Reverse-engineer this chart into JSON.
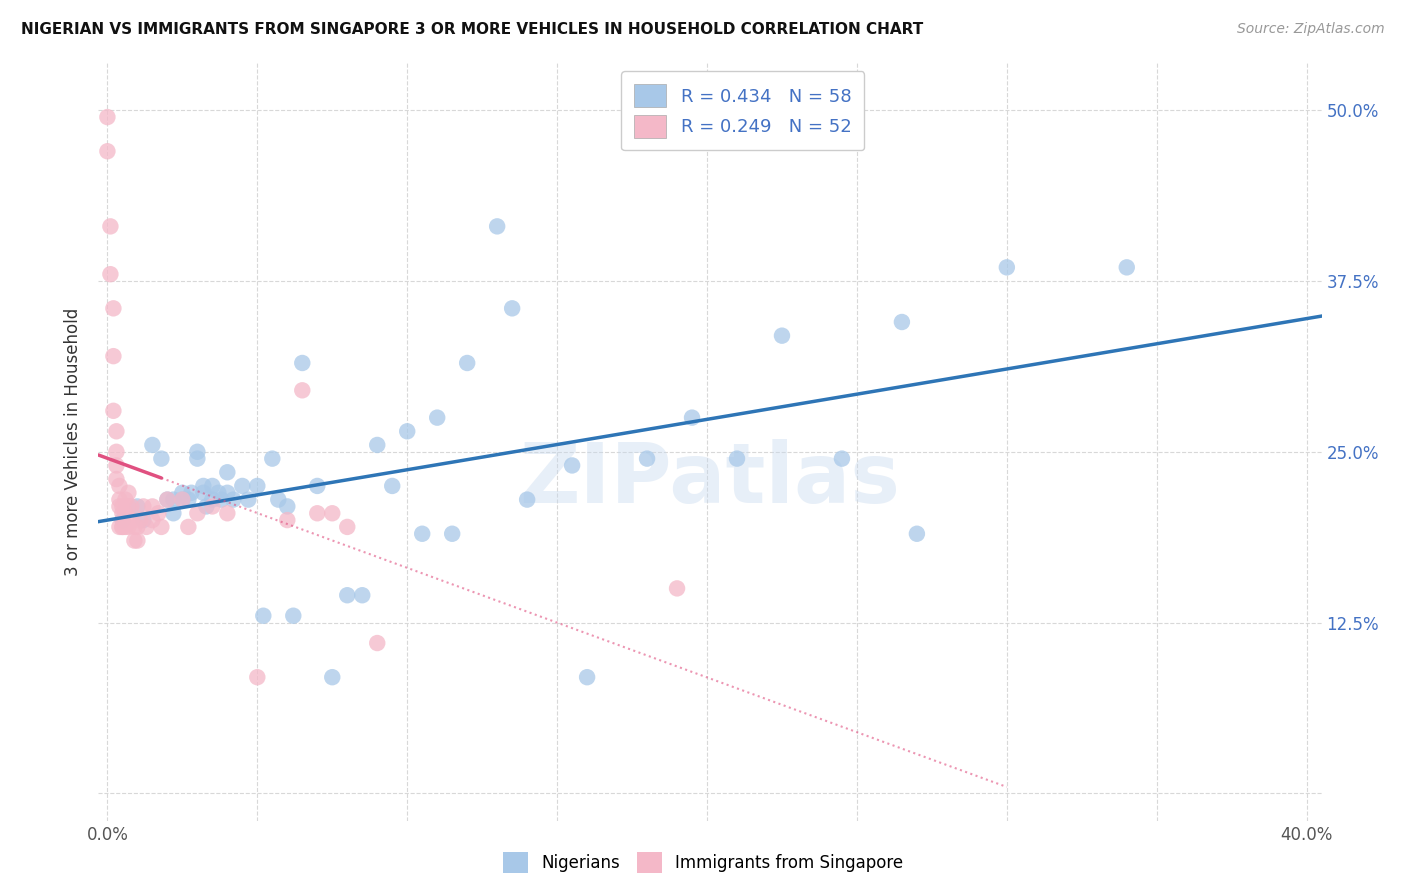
{
  "title": "NIGERIAN VS IMMIGRANTS FROM SINGAPORE 3 OR MORE VEHICLES IN HOUSEHOLD CORRELATION CHART",
  "source": "Source: ZipAtlas.com",
  "ylabel": "3 or more Vehicles in Household",
  "xlim": [
    -0.003,
    0.405
  ],
  "ylim": [
    -0.02,
    0.535
  ],
  "xticks": [
    0.0,
    0.05,
    0.1,
    0.15,
    0.2,
    0.25,
    0.3,
    0.35,
    0.4
  ],
  "xticklabels": [
    "0.0%",
    "",
    "",
    "",
    "",
    "",
    "",
    "",
    "40.0%"
  ],
  "yticks": [
    0.0,
    0.125,
    0.25,
    0.375,
    0.5
  ],
  "yticklabels": [
    "",
    "12.5%",
    "25.0%",
    "37.5%",
    "50.0%"
  ],
  "blue_R": 0.434,
  "blue_N": 58,
  "pink_R": 0.249,
  "pink_N": 52,
  "blue_color": "#a8c8e8",
  "pink_color": "#f4b8c8",
  "blue_line_color": "#2e75b6",
  "pink_line_color": "#e05080",
  "grid_color": "#d8d8d8",
  "watermark": "ZIPatlas",
  "legend_label_blue": "Nigerians",
  "legend_label_pink": "Immigrants from Singapore",
  "blue_points_x": [
    0.005,
    0.01,
    0.012,
    0.015,
    0.018,
    0.02,
    0.022,
    0.022,
    0.025,
    0.025,
    0.027,
    0.028,
    0.03,
    0.03,
    0.032,
    0.032,
    0.033,
    0.035,
    0.035,
    0.037,
    0.038,
    0.04,
    0.04,
    0.042,
    0.045,
    0.047,
    0.05,
    0.052,
    0.055,
    0.057,
    0.06,
    0.062,
    0.065,
    0.07,
    0.075,
    0.08,
    0.085,
    0.09,
    0.095,
    0.1,
    0.105,
    0.11,
    0.115,
    0.12,
    0.13,
    0.135,
    0.14,
    0.155,
    0.16,
    0.18,
    0.195,
    0.21,
    0.225,
    0.245,
    0.265,
    0.27,
    0.3,
    0.34
  ],
  "blue_points_y": [
    0.2,
    0.21,
    0.2,
    0.255,
    0.245,
    0.215,
    0.215,
    0.205,
    0.22,
    0.215,
    0.215,
    0.22,
    0.25,
    0.245,
    0.225,
    0.22,
    0.21,
    0.225,
    0.215,
    0.22,
    0.215,
    0.235,
    0.22,
    0.215,
    0.225,
    0.215,
    0.225,
    0.13,
    0.245,
    0.215,
    0.21,
    0.13,
    0.315,
    0.225,
    0.085,
    0.145,
    0.145,
    0.255,
    0.225,
    0.265,
    0.19,
    0.275,
    0.19,
    0.315,
    0.415,
    0.355,
    0.215,
    0.24,
    0.085,
    0.245,
    0.275,
    0.245,
    0.335,
    0.245,
    0.345,
    0.19,
    0.385,
    0.385
  ],
  "pink_points_x": [
    0.0,
    0.0,
    0.001,
    0.001,
    0.002,
    0.002,
    0.002,
    0.003,
    0.003,
    0.003,
    0.003,
    0.004,
    0.004,
    0.004,
    0.004,
    0.005,
    0.005,
    0.005,
    0.005,
    0.006,
    0.006,
    0.006,
    0.007,
    0.007,
    0.007,
    0.008,
    0.008,
    0.009,
    0.009,
    0.01,
    0.01,
    0.011,
    0.012,
    0.013,
    0.015,
    0.015,
    0.017,
    0.018,
    0.02,
    0.025,
    0.027,
    0.03,
    0.035,
    0.04,
    0.05,
    0.06,
    0.065,
    0.07,
    0.075,
    0.08,
    0.09,
    0.19
  ],
  "pink_points_y": [
    0.495,
    0.47,
    0.415,
    0.38,
    0.355,
    0.32,
    0.28,
    0.265,
    0.25,
    0.24,
    0.23,
    0.225,
    0.215,
    0.21,
    0.195,
    0.195,
    0.21,
    0.205,
    0.195,
    0.215,
    0.205,
    0.195,
    0.22,
    0.21,
    0.195,
    0.21,
    0.2,
    0.195,
    0.185,
    0.195,
    0.185,
    0.2,
    0.21,
    0.195,
    0.21,
    0.2,
    0.205,
    0.195,
    0.215,
    0.215,
    0.195,
    0.205,
    0.21,
    0.205,
    0.085,
    0.2,
    0.295,
    0.205,
    0.205,
    0.195,
    0.11,
    0.15
  ]
}
